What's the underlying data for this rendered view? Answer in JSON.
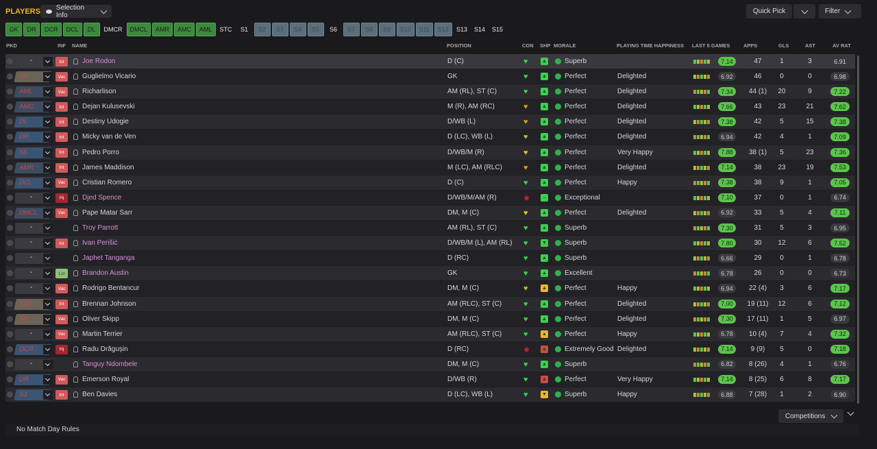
{
  "header": {
    "title": "PLAYERS",
    "selection_info": "Selection Info",
    "quick_pick": "Quick Pick",
    "filter": "Filter"
  },
  "position_tabs": [
    {
      "label": "GK",
      "style": "green"
    },
    {
      "label": "DR",
      "style": "green"
    },
    {
      "label": "DCR",
      "style": "green"
    },
    {
      "label": "DCL",
      "style": "green"
    },
    {
      "label": "DL",
      "style": "green"
    },
    {
      "label": "DMCR",
      "style": "plain"
    },
    {
      "label": "DMCL",
      "style": "green"
    },
    {
      "label": "AMR",
      "style": "green"
    },
    {
      "label": "AMC",
      "style": "green"
    },
    {
      "label": "AML",
      "style": "green"
    },
    {
      "label": "STC",
      "style": "plain"
    },
    {
      "label": "S1",
      "style": "plain"
    },
    {
      "label": "S2",
      "style": "grey"
    },
    {
      "label": "S3",
      "style": "grey"
    },
    {
      "label": "S4",
      "style": "grey"
    },
    {
      "label": "S5",
      "style": "grey"
    },
    {
      "label": "S6",
      "style": "plain"
    },
    {
      "label": "S7",
      "style": "grey"
    },
    {
      "label": "S8",
      "style": "grey"
    },
    {
      "label": "S9",
      "style": "grey"
    },
    {
      "label": "S10",
      "style": "grey"
    },
    {
      "label": "S11",
      "style": "grey"
    },
    {
      "label": "S12",
      "style": "grey"
    },
    {
      "label": "S13",
      "style": "plain"
    },
    {
      "label": "S14",
      "style": "plain"
    },
    {
      "label": "S15",
      "style": "plain"
    }
  ],
  "columns": {
    "pkd": "PKD",
    "inf": "INF",
    "name": "NAME",
    "position": "POSITION",
    "con": "CON",
    "shp": "SHP",
    "morale": "MORALE",
    "pth": "PLAYING TIME HAPPINESS",
    "last5": "LAST 5 GAMES",
    "apps": "APPS",
    "gls": "GLS",
    "ast": "AST",
    "avrat": "AV RAT"
  },
  "players": [
    {
      "pk": "-",
      "pk_style": "dash",
      "inf": "Int",
      "name": "Joe Rodon",
      "name_color": "pink",
      "position": "D (C)",
      "morale": "Superb",
      "pth": "",
      "last5": "7.14",
      "last5_style": "green",
      "apps": "47",
      "gls": "1",
      "ast": "3",
      "avrat": "6.91",
      "avrat_style": "dark",
      "shp": "up",
      "con": "green"
    },
    {
      "pk": "GK",
      "pk_style": "tan",
      "inf": "Vac",
      "name": "Guglielmo Vicario",
      "name_color": "white",
      "position": "GK",
      "morale": "Perfect",
      "pth": "Delighted",
      "last5": "6.92",
      "last5_style": "grey",
      "apps": "46",
      "gls": "0",
      "ast": "0",
      "avrat": "6.98",
      "avrat_style": "dark",
      "shp": "up",
      "con": "green"
    },
    {
      "pk": "AML",
      "pk_style": "dark",
      "inf": "Vac",
      "name": "Richarlison",
      "name_color": "white",
      "position": "AM (RL), ST (C)",
      "morale": "Perfect",
      "pth": "Delighted",
      "last5": "7.34",
      "last5_style": "green",
      "apps": "44 (1)",
      "gls": "20",
      "ast": "9",
      "avrat": "7.22",
      "avrat_style": "green",
      "shp": "up",
      "con": "green"
    },
    {
      "pk": "AMC",
      "pk_style": "dark",
      "inf": "Int",
      "name": "Dejan Kulusevski",
      "name_color": "white",
      "position": "M (R), AM (RC)",
      "morale": "Perfect",
      "pth": "Delighted",
      "last5": "7.66",
      "last5_style": "green",
      "apps": "43",
      "gls": "23",
      "ast": "21",
      "avrat": "7.62",
      "avrat_style": "green",
      "shp": "up",
      "con": "amber"
    },
    {
      "pk": "DL",
      "pk_style": "blue",
      "inf": "Int",
      "name": "Destiny Udogie",
      "name_color": "white",
      "position": "D/WB (L)",
      "morale": "Perfect",
      "pth": "Delighted",
      "last5": "7.38",
      "last5_style": "green",
      "apps": "42",
      "gls": "5",
      "ast": "15",
      "avrat": "7.38",
      "avrat_style": "green",
      "shp": "up",
      "con": "amber"
    },
    {
      "pk": "DR",
      "pk_style": "blue",
      "inf": "Int",
      "name": "Micky van de Ven",
      "name_color": "white",
      "position": "D (LC), WB (L)",
      "morale": "Perfect",
      "pth": "Delighted",
      "last5": "6.94",
      "last5_style": "grey",
      "apps": "42",
      "gls": "4",
      "ast": "1",
      "avrat": "7.09",
      "avrat_style": "green",
      "shp": "up",
      "con": "lime"
    },
    {
      "pk": "S5",
      "pk_style": "blue",
      "inf": "Int",
      "name": "Pedro Porro",
      "name_color": "white",
      "position": "D/WB/M (R)",
      "morale": "Perfect",
      "pth": "Very Happy",
      "last5": "7.88",
      "last5_style": "green",
      "apps": "38 (1)",
      "gls": "5",
      "ast": "23",
      "avrat": "7.36",
      "avrat_style": "green",
      "shp": "up",
      "con": "yellow"
    },
    {
      "pk": "AMR",
      "pk_style": "dark",
      "inf": "Int",
      "name": "James Maddison",
      "name_color": "white",
      "position": "M (LC), AM (RLC)",
      "morale": "Perfect",
      "pth": "Delighted",
      "last5": "7.14",
      "last5_style": "green",
      "apps": "38",
      "gls": "23",
      "ast": "19",
      "avrat": "7.53",
      "avrat_style": "green",
      "shp": "up",
      "con": "amber"
    },
    {
      "pk": "DCL",
      "pk_style": "blue",
      "inf": "Vac",
      "name": "Cristian Romero",
      "name_color": "white",
      "position": "D (C)",
      "morale": "Perfect",
      "pth": "Happy",
      "last5": "7.38",
      "last5_style": "green",
      "apps": "38",
      "gls": "9",
      "ast": "1",
      "avrat": "7.05",
      "avrat_style": "green",
      "shp": "up",
      "con": "green"
    },
    {
      "pk": "-",
      "pk_style": "dash",
      "inf": "Inj",
      "name": "Djed Spence",
      "name_color": "pink",
      "position": "D/WB/M/AM (R)",
      "morale": "Exceptional",
      "pth": "",
      "last5": "7.10",
      "last5_style": "green",
      "apps": "37",
      "gls": "0",
      "ast": "1",
      "avrat": "6.74",
      "avrat_style": "dark",
      "shp": "flat",
      "con": "injury"
    },
    {
      "pk": "DMCL",
      "pk_style": "dark",
      "inf": "Vac",
      "name": "Pape Matar Sarr",
      "name_color": "white",
      "position": "DM, M (C)",
      "morale": "Perfect",
      "pth": "Delighted",
      "last5": "6.92",
      "last5_style": "grey",
      "apps": "33",
      "gls": "5",
      "ast": "4",
      "avrat": "7.11",
      "avrat_style": "green",
      "shp": "up",
      "con": "yellow"
    },
    {
      "pk": "-",
      "pk_style": "dash",
      "inf": "",
      "name": "Troy Parrott",
      "name_color": "pink",
      "position": "AM (RL), ST (C)",
      "morale": "Superb",
      "pth": "",
      "last5": "7.30",
      "last5_style": "green",
      "apps": "31",
      "gls": "5",
      "ast": "3",
      "avrat": "6.95",
      "avrat_style": "dark",
      "shp": "up",
      "con": "green"
    },
    {
      "pk": "-",
      "pk_style": "dash",
      "inf": "Int",
      "name": "Ivan Perišić",
      "name_color": "pink",
      "position": "D/WB/M (L), AM (RL)",
      "morale": "Superb",
      "pth": "",
      "last5": "7.80",
      "last5_style": "green",
      "apps": "30",
      "gls": "12",
      "ast": "6",
      "avrat": "7.52",
      "avrat_style": "green",
      "shp": "down",
      "con": "green"
    },
    {
      "pk": "-",
      "pk_style": "dash",
      "inf": "",
      "name": "Japhet Tanganga",
      "name_color": "pink",
      "position": "D (RC)",
      "morale": "Superb",
      "pth": "",
      "last5": "6.66",
      "last5_style": "grey",
      "apps": "29",
      "gls": "0",
      "ast": "1",
      "avrat": "6.78",
      "avrat_style": "dark",
      "shp": "up",
      "con": "green"
    },
    {
      "pk": "-",
      "pk_style": "dash",
      "inf": "Lst",
      "name": "Brandon Austin",
      "name_color": "pink",
      "position": "GK",
      "morale": "Excellent",
      "pth": "",
      "last5": "6.78",
      "last5_style": "grey",
      "apps": "26",
      "gls": "0",
      "ast": "0",
      "avrat": "6.73",
      "avrat_style": "dark",
      "shp": "up",
      "con": "green"
    },
    {
      "pk": "-",
      "pk_style": "dash",
      "inf": "Vac",
      "name": "Rodrigo Bentancur",
      "name_color": "white",
      "position": "DM, M (C)",
      "morale": "Perfect",
      "pth": "Happy",
      "last5": "6.94",
      "last5_style": "grey",
      "apps": "22 (4)",
      "gls": "3",
      "ast": "6",
      "avrat": "7.17",
      "avrat_style": "green",
      "shp": "caret",
      "con": "lime"
    },
    {
      "pk": "S10",
      "pk_style": "tan",
      "inf": "Int",
      "name": "Brennan Johnson",
      "name_color": "white",
      "position": "AM (RLC), ST (C)",
      "morale": "Perfect",
      "pth": "Delighted",
      "last5": "7.00",
      "last5_style": "green",
      "apps": "19 (11)",
      "gls": "12",
      "ast": "6",
      "avrat": "7.12",
      "avrat_style": "green",
      "shp": "up",
      "con": "green"
    },
    {
      "pk": "S3",
      "pk_style": "tan",
      "inf": "Vac",
      "name": "Oliver Skipp",
      "name_color": "white",
      "position": "DM, M (C)",
      "morale": "Perfect",
      "pth": "Delighted",
      "last5": "7.30",
      "last5_style": "green",
      "apps": "17 (11)",
      "gls": "1",
      "ast": "5",
      "avrat": "6.97",
      "avrat_style": "dark",
      "shp": "up",
      "con": "green"
    },
    {
      "pk": "-",
      "pk_style": "dash",
      "inf": "Vac",
      "name": "Martin Terrier",
      "name_color": "white",
      "position": "AM (RLC), ST (C)",
      "morale": "Perfect",
      "pth": "Happy",
      "last5": "6.78",
      "last5_style": "grey",
      "apps": "10 (4)",
      "gls": "7",
      "ast": "4",
      "avrat": "7.32",
      "avrat_style": "green",
      "shp": "caret",
      "con": "green"
    },
    {
      "pk": "DCR",
      "pk_style": "blue",
      "inf": "Inj",
      "name": "Radu Drăgușin",
      "name_color": "white",
      "position": "D (RC)",
      "morale": "Extremely Good",
      "pth": "Delighted",
      "last5": "7.14",
      "last5_style": "green",
      "apps": "9 (9)",
      "gls": "5",
      "ast": "0",
      "avrat": "7.18",
      "avrat_style": "green",
      "shp": "red",
      "con": "injury"
    },
    {
      "pk": "-",
      "pk_style": "dash",
      "inf": "",
      "name": "Tanguy Ndombele",
      "name_color": "pink",
      "position": "DM, M (C)",
      "morale": "Superb",
      "pth": "",
      "last5": "6.82",
      "last5_style": "grey",
      "apps": "8 (26)",
      "gls": "4",
      "ast": "1",
      "avrat": "6.76",
      "avrat_style": "dark",
      "shp": "up",
      "con": "green"
    },
    {
      "pk": "DR",
      "pk_style": "blue",
      "inf": "Vac",
      "name": "Emerson Royal",
      "name_color": "white",
      "position": "D/WB (R)",
      "morale": "Perfect",
      "pth": "Very Happy",
      "last5": "7.14",
      "last5_style": "green",
      "apps": "8 (25)",
      "gls": "6",
      "ast": "8",
      "avrat": "7.17",
      "avrat_style": "green",
      "shp": "red",
      "con": "green"
    },
    {
      "pk": "S3",
      "pk_style": "blue",
      "inf": "Int",
      "name": "Ben Davies",
      "name_color": "white",
      "position": "D (LC), WB (L)",
      "morale": "Superb",
      "pth": "Happy",
      "last5": "6.88",
      "last5_style": "grey",
      "apps": "7 (28)",
      "gls": "1",
      "ast": "2",
      "avrat": "6.90",
      "avrat_style": "dark",
      "shp": "down-y",
      "con": "green"
    }
  ],
  "competitions": "Competitions",
  "footer": "No Match Day Rules"
}
